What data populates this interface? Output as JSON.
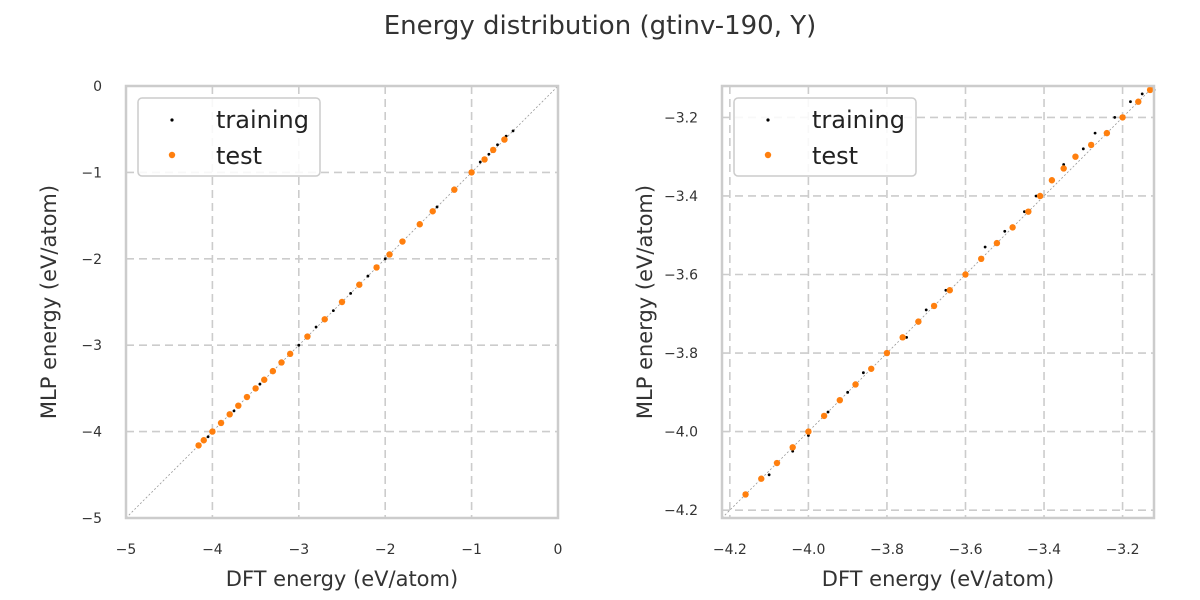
{
  "figure": {
    "title": "Energy distribution (gtinv-190, Y)"
  },
  "colors": {
    "training": "#000000",
    "test": "#ff7f0e",
    "grid": "#cccccc",
    "spine": "#cccccc",
    "diagonal": "#999999"
  },
  "chart_data": [
    {
      "type": "scatter",
      "title": "",
      "xlabel": "DFT energy (eV/atom)",
      "ylabel": "MLP energy (eV/atom)",
      "xlim": [
        -5,
        0
      ],
      "ylim": [
        -5,
        0
      ],
      "xticks": [
        -5,
        -4,
        -3,
        -2,
        -1,
        0
      ],
      "yticks": [
        -5,
        -4,
        -3,
        -2,
        -1,
        0
      ],
      "xtick_labels": [
        "−5",
        "−4",
        "−3",
        "−2",
        "−1",
        "0"
      ],
      "ytick_labels": [
        "−5",
        "−4",
        "−3",
        "−2",
        "−1",
        "0"
      ],
      "grid": true,
      "diagonal_reference_line": true,
      "legend_position": "upper-left",
      "legend": [
        "training",
        "test"
      ],
      "series": [
        {
          "name": "training",
          "marker": "dot",
          "points": [
            [
              -4.16,
              -4.16
            ],
            [
              -4.05,
              -4.06
            ],
            [
              -3.9,
              -3.9
            ],
            [
              -3.75,
              -3.76
            ],
            [
              -3.6,
              -3.6
            ],
            [
              -3.45,
              -3.45
            ],
            [
              -3.3,
              -3.3
            ],
            [
              -3.1,
              -3.1
            ],
            [
              -3.0,
              -3.0
            ],
            [
              -2.8,
              -2.79
            ],
            [
              -2.6,
              -2.6
            ],
            [
              -2.4,
              -2.4
            ],
            [
              -2.2,
              -2.2
            ],
            [
              -2.0,
              -2.0
            ],
            [
              -1.8,
              -1.8
            ],
            [
              -1.6,
              -1.6
            ],
            [
              -1.4,
              -1.4
            ],
            [
              -1.2,
              -1.18
            ],
            [
              -1.0,
              -0.99
            ],
            [
              -0.9,
              -0.88
            ],
            [
              -0.8,
              -0.79
            ],
            [
              -0.7,
              -0.68
            ],
            [
              -0.6,
              -0.58
            ],
            [
              -0.52,
              -0.52
            ]
          ]
        },
        {
          "name": "test",
          "marker": "dot",
          "points": [
            [
              -4.16,
              -4.16
            ],
            [
              -4.1,
              -4.1
            ],
            [
              -4.0,
              -4.0
            ],
            [
              -3.9,
              -3.9
            ],
            [
              -3.8,
              -3.8
            ],
            [
              -3.7,
              -3.7
            ],
            [
              -3.6,
              -3.6
            ],
            [
              -3.5,
              -3.5
            ],
            [
              -3.4,
              -3.4
            ],
            [
              -3.3,
              -3.3
            ],
            [
              -3.2,
              -3.2
            ],
            [
              -3.1,
              -3.1
            ],
            [
              -2.9,
              -2.9
            ],
            [
              -2.7,
              -2.7
            ],
            [
              -2.5,
              -2.5
            ],
            [
              -2.3,
              -2.3
            ],
            [
              -2.1,
              -2.1
            ],
            [
              -1.95,
              -1.95
            ],
            [
              -1.8,
              -1.8
            ],
            [
              -1.6,
              -1.6
            ],
            [
              -1.45,
              -1.45
            ],
            [
              -1.2,
              -1.2
            ],
            [
              -1.0,
              -1.0
            ],
            [
              -0.85,
              -0.85
            ],
            [
              -0.75,
              -0.74
            ],
            [
              -0.62,
              -0.62
            ]
          ]
        }
      ]
    },
    {
      "type": "scatter",
      "title": "",
      "xlabel": "DFT energy (eV/atom)",
      "ylabel": "MLP energy (eV/atom)",
      "xlim": [
        -4.22,
        -3.12
      ],
      "ylim": [
        -4.22,
        -3.12
      ],
      "xticks": [
        -4.2,
        -4.0,
        -3.8,
        -3.6,
        -3.4,
        -3.2
      ],
      "yticks": [
        -4.2,
        -4.0,
        -3.8,
        -3.6,
        -3.4,
        -3.2
      ],
      "xtick_labels": [
        "−4.2",
        "−4.0",
        "−3.8",
        "−3.6",
        "−3.4",
        "−3.2"
      ],
      "ytick_labels": [
        "−4.2",
        "−4.0",
        "−3.8",
        "−3.6",
        "−3.4",
        "−3.2"
      ],
      "grid": true,
      "diagonal_reference_line": true,
      "legend_position": "upper-left",
      "legend": [
        "training",
        "test"
      ],
      "series": [
        {
          "name": "training",
          "marker": "dot",
          "points": [
            [
              -4.16,
              -4.16
            ],
            [
              -4.1,
              -4.11
            ],
            [
              -4.04,
              -4.05
            ],
            [
              -4.0,
              -4.01
            ],
            [
              -3.95,
              -3.95
            ],
            [
              -3.9,
              -3.9
            ],
            [
              -3.86,
              -3.85
            ],
            [
              -3.8,
              -3.8
            ],
            [
              -3.75,
              -3.76
            ],
            [
              -3.7,
              -3.69
            ],
            [
              -3.65,
              -3.64
            ],
            [
              -3.6,
              -3.6
            ],
            [
              -3.55,
              -3.53
            ],
            [
              -3.5,
              -3.49
            ],
            [
              -3.45,
              -3.44
            ],
            [
              -3.42,
              -3.4
            ],
            [
              -3.38,
              -3.36
            ],
            [
              -3.35,
              -3.32
            ],
            [
              -3.3,
              -3.28
            ],
            [
              -3.27,
              -3.24
            ],
            [
              -3.22,
              -3.2
            ],
            [
              -3.18,
              -3.16
            ],
            [
              -3.15,
              -3.14
            ],
            [
              -3.12,
              -3.13
            ]
          ]
        },
        {
          "name": "test",
          "marker": "dot",
          "points": [
            [
              -4.16,
              -4.16
            ],
            [
              -4.12,
              -4.12
            ],
            [
              -4.08,
              -4.08
            ],
            [
              -4.04,
              -4.04
            ],
            [
              -4.0,
              -4.0
            ],
            [
              -3.96,
              -3.96
            ],
            [
              -3.92,
              -3.92
            ],
            [
              -3.88,
              -3.88
            ],
            [
              -3.84,
              -3.84
            ],
            [
              -3.8,
              -3.8
            ],
            [
              -3.76,
              -3.76
            ],
            [
              -3.72,
              -3.72
            ],
            [
              -3.68,
              -3.68
            ],
            [
              -3.64,
              -3.64
            ],
            [
              -3.6,
              -3.6
            ],
            [
              -3.56,
              -3.56
            ],
            [
              -3.52,
              -3.52
            ],
            [
              -3.48,
              -3.48
            ],
            [
              -3.44,
              -3.44
            ],
            [
              -3.41,
              -3.4
            ],
            [
              -3.38,
              -3.36
            ],
            [
              -3.35,
              -3.33
            ],
            [
              -3.32,
              -3.3
            ],
            [
              -3.28,
              -3.27
            ],
            [
              -3.24,
              -3.24
            ],
            [
              -3.2,
              -3.2
            ],
            [
              -3.16,
              -3.16
            ],
            [
              -3.13,
              -3.13
            ]
          ]
        }
      ]
    }
  ]
}
